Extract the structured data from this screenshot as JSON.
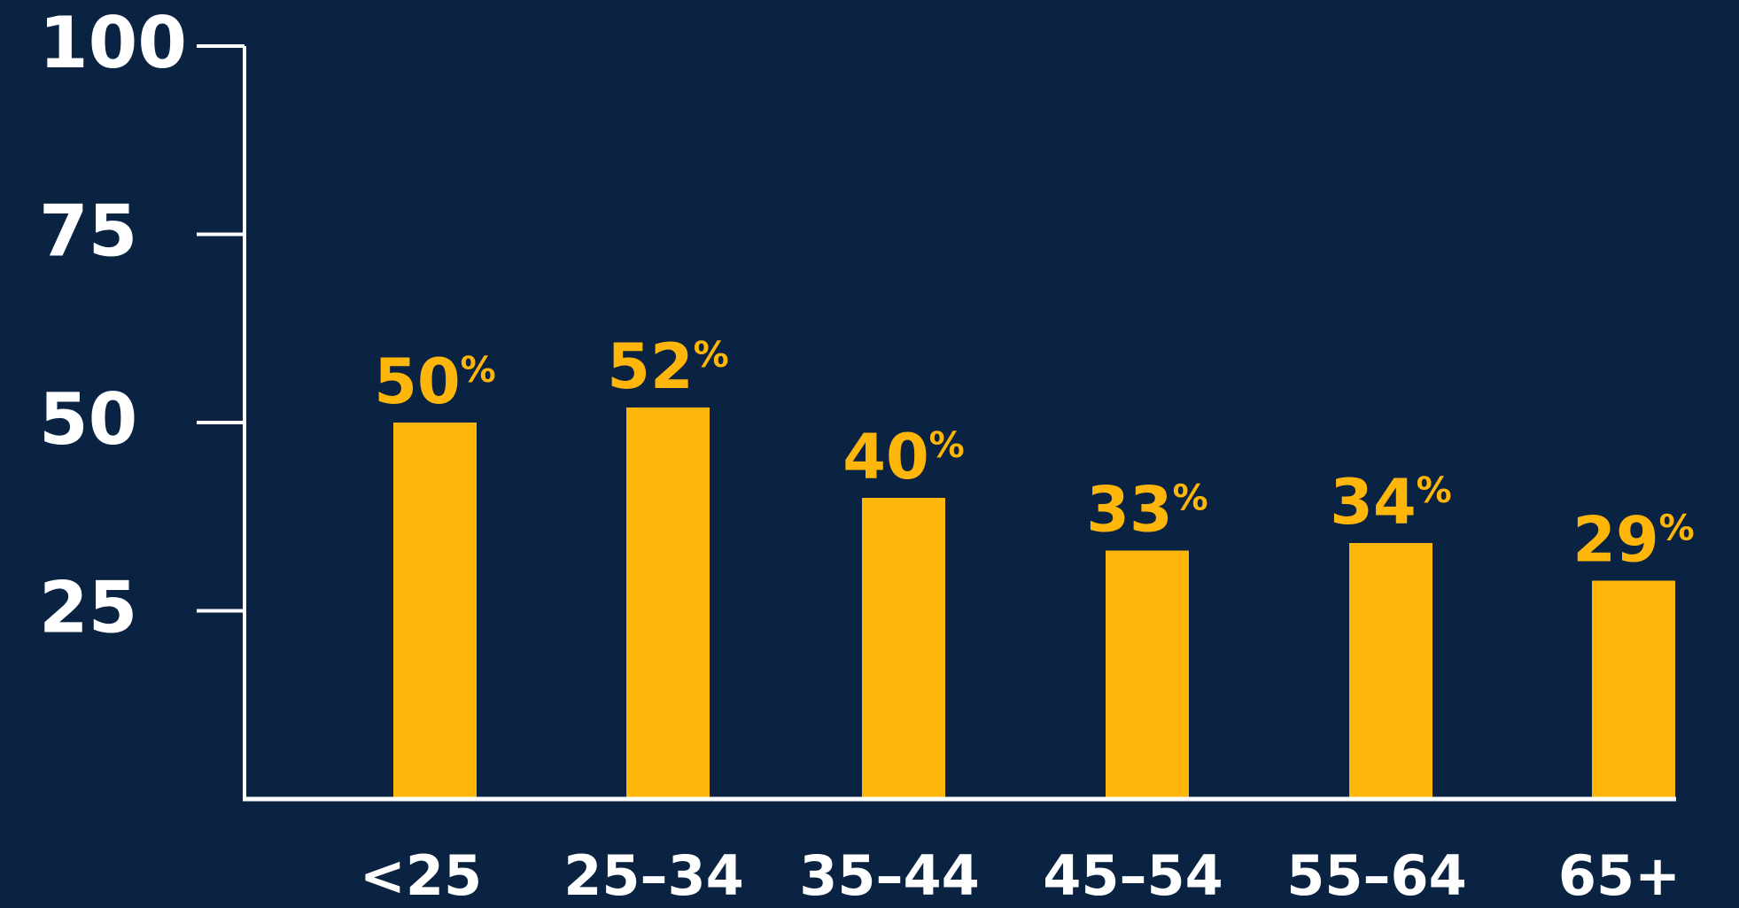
{
  "colors": {
    "background": "#0b2342",
    "bar": "#ffb60b",
    "axis": "#ffffff",
    "text": "#ffffff"
  },
  "chart_data": {
    "type": "bar",
    "title": "",
    "xlabel": "",
    "ylabel": "",
    "ylim": [
      0,
      100
    ],
    "yticks": [
      25,
      50,
      75,
      100
    ],
    "ytick_labels": [
      "25",
      "50",
      "75",
      "100"
    ],
    "grid": false,
    "categories": [
      "<25",
      "25–34",
      "35–44",
      "45–54",
      "55–64",
      "65+"
    ],
    "values": [
      50,
      52,
      40,
      33,
      34,
      29
    ],
    "value_labels": [
      "50",
      "52",
      "40",
      "33",
      "34",
      "29"
    ],
    "value_suffix": "%"
  }
}
